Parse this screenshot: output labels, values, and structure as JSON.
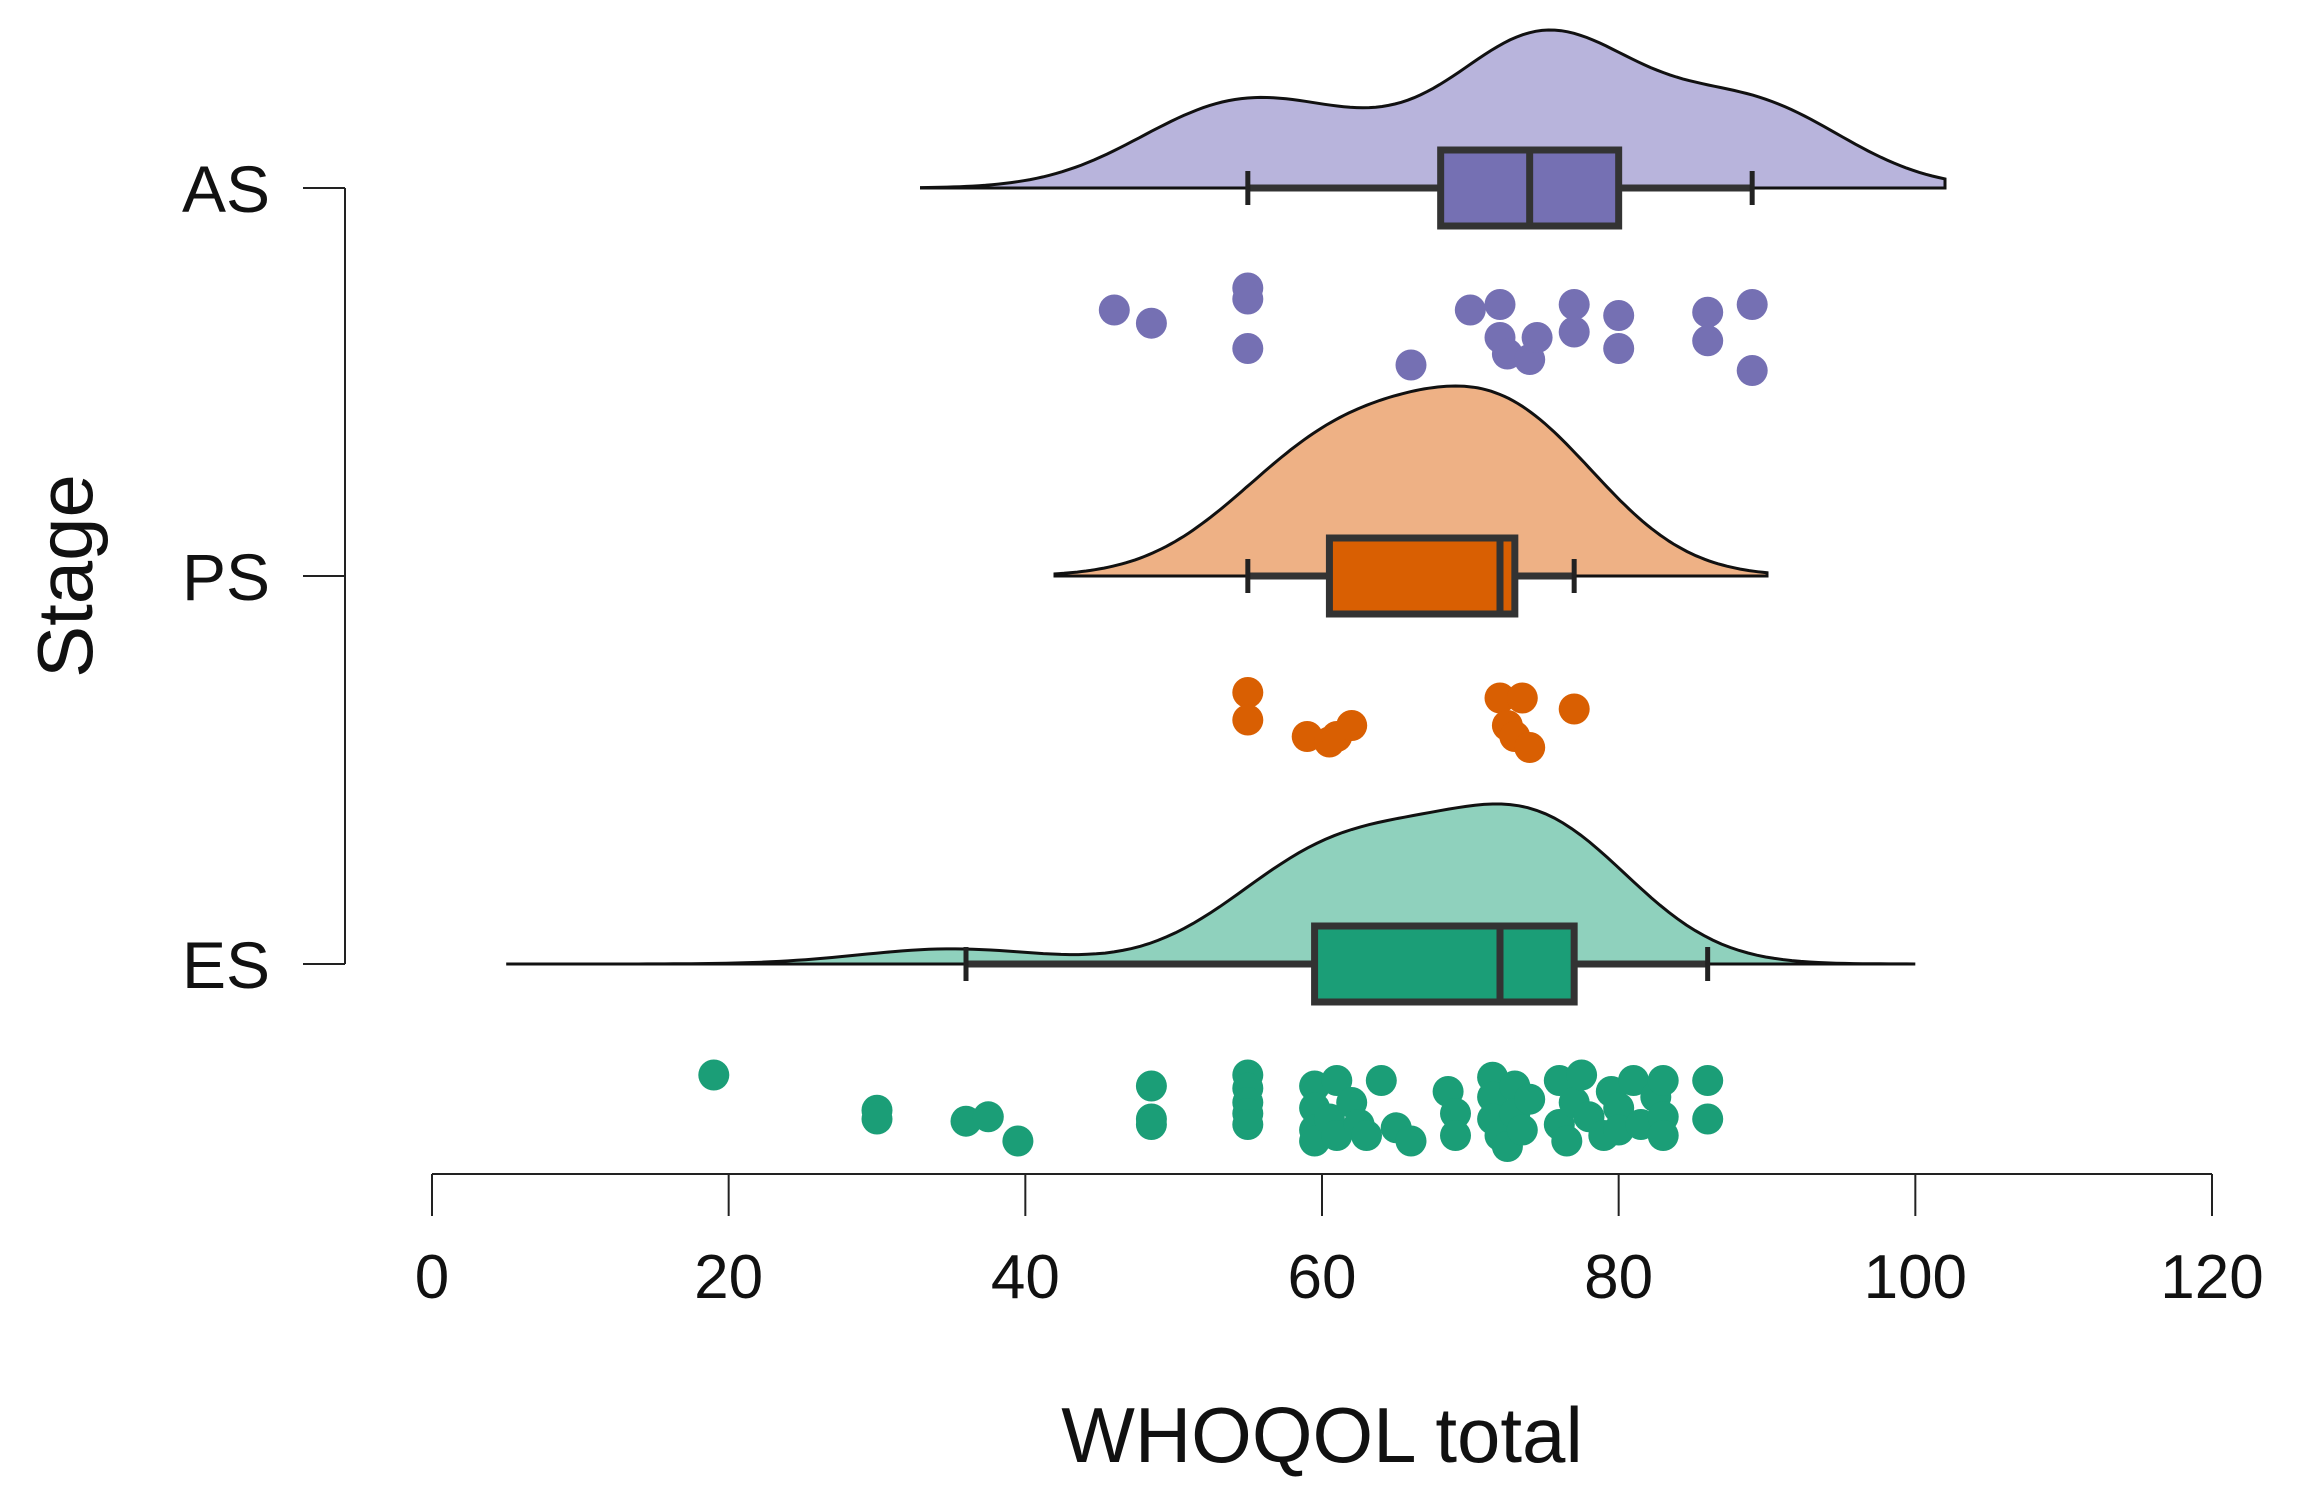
{
  "chart_data": {
    "type": "raincloud",
    "title": "",
    "xlabel": "WHOQOL total",
    "ylabel": "Stage",
    "xlim": [
      0,
      120
    ],
    "x_ticks": [
      0,
      20,
      40,
      60,
      80,
      100,
      120
    ],
    "x_tick_labels": [
      "0",
      "20",
      "40",
      "60",
      "80",
      "100",
      "120"
    ],
    "grid": false,
    "legend": "none",
    "series": [
      {
        "name": "AS",
        "color": "#7570b3",
        "cloud_color": "#b8b4dc",
        "density_range": [
          33,
          102
        ],
        "density_peaks": [
          [
            53,
            0.45
          ],
          [
            61,
            0.28
          ],
          [
            75,
            1.0
          ],
          [
            89,
            0.55
          ]
        ],
        "box": {
          "whisker_low": 55,
          "q1": 68,
          "median": 74,
          "q3": 80,
          "whisker_high": 89
        },
        "points": [
          {
            "x": 46,
            "j": 0.6
          },
          {
            "x": 48.5,
            "j": 0.72
          },
          {
            "x": 55,
            "j": 0.4
          },
          {
            "x": 55,
            "j": 0.5
          },
          {
            "x": 55,
            "j": 0.95
          },
          {
            "x": 66,
            "j": 1.1
          },
          {
            "x": 70,
            "j": 0.6
          },
          {
            "x": 72,
            "j": 0.55
          },
          {
            "x": 72,
            "j": 0.85
          },
          {
            "x": 72.5,
            "j": 1.0
          },
          {
            "x": 74,
            "j": 1.05
          },
          {
            "x": 74.5,
            "j": 0.85
          },
          {
            "x": 77,
            "j": 0.55
          },
          {
            "x": 77,
            "j": 0.8
          },
          {
            "x": 80,
            "j": 0.65
          },
          {
            "x": 80,
            "j": 0.95
          },
          {
            "x": 86,
            "j": 0.62
          },
          {
            "x": 86,
            "j": 0.88
          },
          {
            "x": 89,
            "j": 0.55
          },
          {
            "x": 89,
            "j": 1.15
          }
        ]
      },
      {
        "name": "PS",
        "color": "#d95f02",
        "cloud_color": "#eeb185",
        "density_range": [
          42,
          90
        ],
        "density_peaks": [
          [
            59,
            0.62
          ],
          [
            65,
            0.48
          ],
          [
            73,
            1.0
          ]
        ],
        "box": {
          "whisker_low": 55,
          "q1": 60.5,
          "median": 72,
          "q3": 73,
          "whisker_high": 77
        },
        "points": [
          {
            "x": 55,
            "j": 0.55
          },
          {
            "x": 55,
            "j": 0.8
          },
          {
            "x": 59,
            "j": 0.95
          },
          {
            "x": 60.5,
            "j": 1.0
          },
          {
            "x": 61,
            "j": 0.95
          },
          {
            "x": 62,
            "j": 0.85
          },
          {
            "x": 72,
            "j": 0.6
          },
          {
            "x": 72.5,
            "j": 0.85
          },
          {
            "x": 73,
            "j": 0.95
          },
          {
            "x": 73.5,
            "j": 0.6
          },
          {
            "x": 74,
            "j": 1.05
          },
          {
            "x": 77,
            "j": 0.7
          }
        ]
      },
      {
        "name": "ES",
        "color": "#1b9e77",
        "cloud_color": "#8fd1bd",
        "density_range": [
          5,
          100
        ],
        "density_peaks": [
          [
            35,
            0.12
          ],
          [
            59,
            0.62
          ],
          [
            66,
            0.5
          ],
          [
            75,
            1.0
          ]
        ],
        "box": {
          "whisker_low": 36,
          "q1": 59.5,
          "median": 72,
          "q3": 77,
          "whisker_high": 86
        },
        "points": [
          {
            "x": 19,
            "j": 0.5
          },
          {
            "x": 30,
            "j": 0.82
          },
          {
            "x": 30,
            "j": 0.9
          },
          {
            "x": 36,
            "j": 0.92
          },
          {
            "x": 37.5,
            "j": 0.88
          },
          {
            "x": 39.5,
            "j": 1.1
          },
          {
            "x": 48.5,
            "j": 0.6
          },
          {
            "x": 48.5,
            "j": 0.9
          },
          {
            "x": 48.5,
            "j": 0.95
          },
          {
            "x": 55,
            "j": 0.5
          },
          {
            "x": 55,
            "j": 0.62
          },
          {
            "x": 55,
            "j": 0.75
          },
          {
            "x": 55,
            "j": 0.85
          },
          {
            "x": 55,
            "j": 0.95
          },
          {
            "x": 59.5,
            "j": 0.6
          },
          {
            "x": 59.5,
            "j": 0.8
          },
          {
            "x": 59.5,
            "j": 1.0
          },
          {
            "x": 59.5,
            "j": 1.1
          },
          {
            "x": 60.5,
            "j": 0.9
          },
          {
            "x": 61,
            "j": 0.55
          },
          {
            "x": 61,
            "j": 1.05
          },
          {
            "x": 62,
            "j": 0.75
          },
          {
            "x": 62.5,
            "j": 0.95
          },
          {
            "x": 63,
            "j": 1.05
          },
          {
            "x": 64,
            "j": 0.55
          },
          {
            "x": 65,
            "j": 0.98
          },
          {
            "x": 66,
            "j": 1.1
          },
          {
            "x": 68.5,
            "j": 0.65
          },
          {
            "x": 69,
            "j": 0.85
          },
          {
            "x": 69,
            "j": 1.05
          },
          {
            "x": 71.5,
            "j": 0.52
          },
          {
            "x": 71.5,
            "j": 0.7
          },
          {
            "x": 71.5,
            "j": 0.9
          },
          {
            "x": 72,
            "j": 1.05
          },
          {
            "x": 72.5,
            "j": 1.15
          },
          {
            "x": 73,
            "j": 0.6
          },
          {
            "x": 73,
            "j": 0.85
          },
          {
            "x": 73.5,
            "j": 1.0
          },
          {
            "x": 74,
            "j": 0.72
          },
          {
            "x": 76,
            "j": 0.55
          },
          {
            "x": 76,
            "j": 0.95
          },
          {
            "x": 76.5,
            "j": 1.1
          },
          {
            "x": 77,
            "j": 0.75
          },
          {
            "x": 77.5,
            "j": 0.5
          },
          {
            "x": 78,
            "j": 0.88
          },
          {
            "x": 79,
            "j": 1.05
          },
          {
            "x": 79.5,
            "j": 0.65
          },
          {
            "x": 80,
            "j": 0.8
          },
          {
            "x": 80,
            "j": 1.0
          },
          {
            "x": 81,
            "j": 0.55
          },
          {
            "x": 81.5,
            "j": 0.95
          },
          {
            "x": 82.5,
            "j": 0.7
          },
          {
            "x": 83,
            "j": 0.55
          },
          {
            "x": 83,
            "j": 0.88
          },
          {
            "x": 83,
            "j": 1.05
          },
          {
            "x": 86,
            "j": 0.55
          },
          {
            "x": 86,
            "j": 0.9
          }
        ]
      }
    ]
  }
}
